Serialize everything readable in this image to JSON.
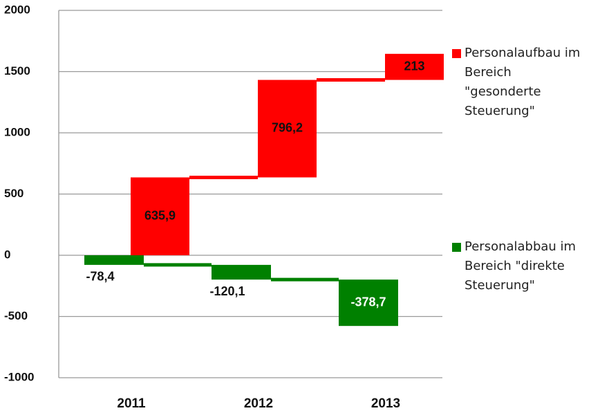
{
  "chart_data": {
    "type": "waterfall",
    "categories": [
      "2011",
      "2012",
      "2013"
    ],
    "series": [
      {
        "name": "Personalaufbau im Bereich \"gesonderte Steuerung\"",
        "color": "#ff0000",
        "values": [
          635.9,
          796.2,
          213
        ],
        "value_labels": [
          "635,9",
          "796,2",
          "213"
        ]
      },
      {
        "name": "Personalabbau im Bereich \"direkte Steuerung\"",
        "color": "#008000",
        "values": [
          -78.4,
          -120.1,
          -378.7
        ],
        "value_labels": [
          "-78,4",
          "-120,1",
          "-378,7"
        ]
      }
    ],
    "ylim": [
      -1000,
      2000
    ],
    "yticks": [
      -1000,
      -500,
      0,
      500,
      1000,
      1500,
      2000
    ],
    "grid": true,
    "legend": "right"
  }
}
